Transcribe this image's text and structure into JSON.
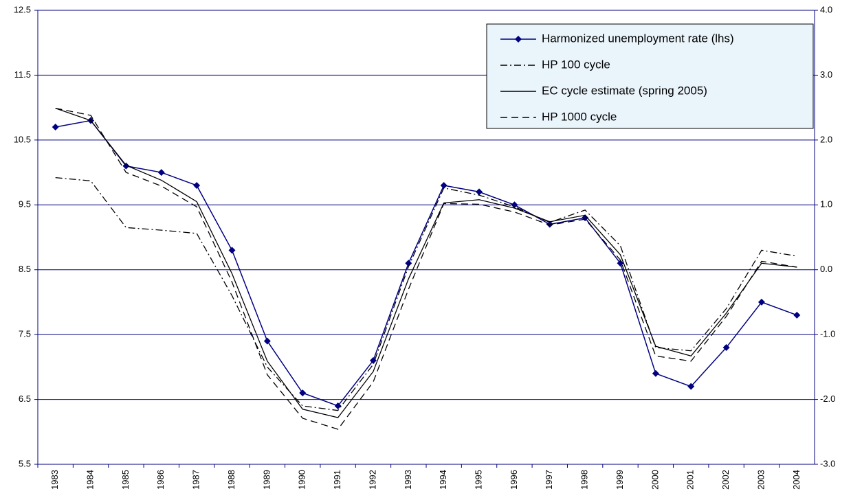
{
  "chart_data": {
    "type": "line",
    "categories": [
      "1983",
      "1984",
      "1985",
      "1986",
      "1987",
      "1988",
      "1989",
      "1990",
      "1991",
      "1992",
      "1993",
      "1994",
      "1995",
      "1996",
      "1997",
      "1998",
      "1999",
      "2000",
      "2001",
      "2002",
      "2003",
      "2004"
    ],
    "ylim": [
      5.5,
      12.5
    ],
    "yticks": [
      5.5,
      6.5,
      7.5,
      8.5,
      9.5,
      10.5,
      11.5,
      12.5
    ],
    "y2lim": [
      -3,
      4
    ],
    "y2ticks": [
      {
        "value": -3,
        "label": "-3.0"
      },
      {
        "value": -2,
        "label": "-2.0"
      },
      {
        "value": -1,
        "label": "-1.0"
      },
      {
        "value": 0,
        "label": "0.0"
      },
      {
        "value": 1,
        "label": "1.0"
      },
      {
        "value": 2,
        "label": "2.0"
      },
      {
        "value": 3,
        "label": "3.0"
      },
      {
        "value": 4,
        "label": "4.0"
      }
    ],
    "grid": true,
    "grid_color": "#000080",
    "legend": "upper-right",
    "series": [
      {
        "name": "Harmonized unemployment rate (lhs)",
        "color": "#000080",
        "line_style": "solid",
        "marker": "diamond",
        "values": [
          10.7,
          10.8,
          10.1,
          10.0,
          9.8,
          8.8,
          7.4,
          6.6,
          6.4,
          7.1,
          8.6,
          9.8,
          9.7,
          9.5,
          9.2,
          9.3,
          8.6,
          6.9,
          6.7,
          7.3,
          8.0,
          7.8
        ]
      },
      {
        "name": "HP 100 cycle",
        "color": "#000000",
        "line_style": "dashdot",
        "axis": "y2",
        "values": [
          1.42,
          1.37,
          0.65,
          0.61,
          0.56,
          -0.4,
          -1.5,
          -2.1,
          -2.17,
          -1.46,
          0.05,
          1.26,
          1.15,
          0.97,
          0.73,
          0.92,
          0.37,
          -1.2,
          -1.25,
          -0.6,
          0.3,
          0.21
        ]
      },
      {
        "name": "EC cycle estimate (spring 2005)",
        "color": "#000000",
        "line_style": "solid",
        "axis": "y2",
        "values": [
          2.49,
          2.3,
          1.61,
          1.38,
          1.05,
          -0.06,
          -1.41,
          -2.15,
          -2.28,
          -1.57,
          -0.14,
          1.03,
          1.08,
          0.95,
          0.74,
          0.84,
          0.23,
          -1.18,
          -1.33,
          -0.67,
          0.1,
          0.04
        ]
      },
      {
        "name": "HP 1000 cycle",
        "color": "#000000",
        "line_style": "dash",
        "axis": "y2",
        "values": [
          2.49,
          2.38,
          1.5,
          1.29,
          0.97,
          -0.19,
          -1.62,
          -2.29,
          -2.46,
          -1.73,
          -0.3,
          1.02,
          1.01,
          0.89,
          0.69,
          0.78,
          0.15,
          -1.33,
          -1.41,
          -0.72,
          0.13,
          0.04
        ]
      }
    ]
  }
}
